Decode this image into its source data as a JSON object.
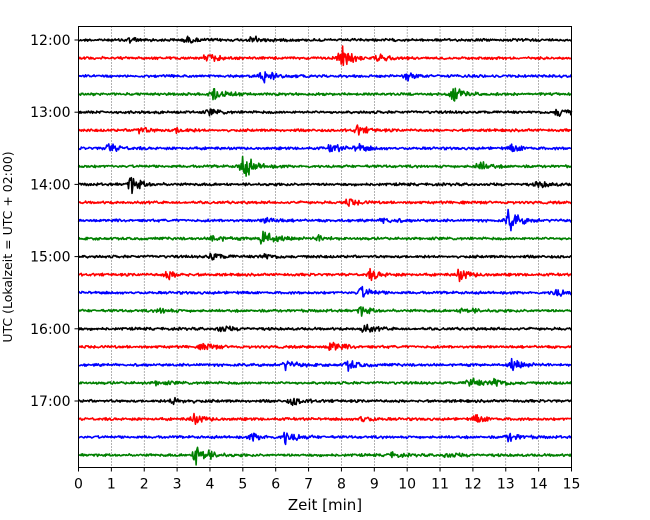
{
  "chart_data": {
    "type": "line",
    "title": "",
    "xlabel": "Zeit  [min]",
    "ylabel": "UTC (Lokalzeit = UTC + 02:00)",
    "xlim": [
      0,
      15
    ],
    "x_ticks": [
      "0",
      "1",
      "2",
      "3",
      "4",
      "5",
      "6",
      "7",
      "8",
      "9",
      "10",
      "11",
      "12",
      "13",
      "14",
      "15"
    ],
    "y_ticks": [
      "12:00",
      "13:00",
      "14:00",
      "15:00",
      "16:00",
      "17:00"
    ],
    "grid": "vertical dotted lines at each minute",
    "colors": [
      "#000000",
      "#ff0000",
      "#0000ff",
      "#008000"
    ],
    "traces": [
      {
        "start": "12:00",
        "color": "#000000",
        "events": [
          [
            1.5,
            0.35
          ],
          [
            3.3,
            0.35
          ],
          [
            5.3,
            0.5
          ]
        ]
      },
      {
        "start": "12:15",
        "color": "#ff0000",
        "events": [
          [
            3.9,
            0.55
          ],
          [
            8.0,
            1.4
          ],
          [
            9.1,
            0.4
          ]
        ]
      },
      {
        "start": "12:30",
        "color": "#0000ff",
        "events": [
          [
            5.6,
            0.9
          ],
          [
            10.0,
            0.45
          ]
        ]
      },
      {
        "start": "12:45",
        "color": "#008000",
        "events": [
          [
            4.1,
            0.9
          ],
          [
            11.4,
            0.85
          ]
        ]
      },
      {
        "start": "13:00",
        "color": "#000000",
        "events": [
          [
            4.0,
            0.35
          ],
          [
            14.6,
            0.6
          ]
        ]
      },
      {
        "start": "13:15",
        "color": "#ff0000",
        "events": [
          [
            1.8,
            0.5
          ],
          [
            3.0,
            0.35
          ],
          [
            8.5,
            0.55
          ]
        ]
      },
      {
        "start": "13:30",
        "color": "#0000ff",
        "events": [
          [
            0.9,
            0.6
          ],
          [
            7.7,
            0.55
          ],
          [
            8.5,
            0.55
          ],
          [
            13.2,
            0.5
          ]
        ]
      },
      {
        "start": "13:45",
        "color": "#008000",
        "events": [
          [
            5.0,
            1.7
          ],
          [
            12.2,
            0.6
          ]
        ]
      },
      {
        "start": "14:00",
        "color": "#000000",
        "events": [
          [
            1.6,
            1.1
          ],
          [
            14.0,
            0.45
          ]
        ]
      },
      {
        "start": "14:15",
        "color": "#ff0000",
        "events": [
          [
            8.2,
            0.45
          ]
        ]
      },
      {
        "start": "14:30",
        "color": "#0000ff",
        "events": [
          [
            5.7,
            0.45
          ],
          [
            9.3,
            0.45
          ],
          [
            13.1,
            1.4
          ]
        ]
      },
      {
        "start": "14:45",
        "color": "#008000",
        "events": [
          [
            4.1,
            0.45
          ],
          [
            5.6,
            1.3
          ],
          [
            7.3,
            0.35
          ]
        ]
      },
      {
        "start": "15:00",
        "color": "#000000",
        "events": [
          [
            4.0,
            0.6
          ],
          [
            5.6,
            0.4
          ]
        ]
      },
      {
        "start": "15:15",
        "color": "#ff0000",
        "events": [
          [
            2.7,
            0.55
          ],
          [
            8.9,
            0.6
          ],
          [
            11.6,
            0.75
          ]
        ]
      },
      {
        "start": "15:30",
        "color": "#0000ff",
        "events": [
          [
            8.6,
            0.75
          ],
          [
            14.5,
            0.55
          ]
        ]
      },
      {
        "start": "15:45",
        "color": "#008000",
        "events": [
          [
            2.5,
            0.35
          ],
          [
            8.6,
            0.55
          ],
          [
            11.7,
            0.45
          ]
        ]
      },
      {
        "start": "16:00",
        "color": "#000000",
        "events": [
          [
            4.3,
            0.45
          ],
          [
            8.7,
            0.55
          ]
        ]
      },
      {
        "start": "16:15",
        "color": "#ff0000",
        "events": [
          [
            3.8,
            0.45
          ],
          [
            7.7,
            0.7
          ]
        ]
      },
      {
        "start": "16:30",
        "color": "#0000ff",
        "events": [
          [
            6.3,
            0.6
          ],
          [
            8.2,
            0.65
          ],
          [
            13.2,
            0.65
          ]
        ]
      },
      {
        "start": "16:45",
        "color": "#008000",
        "events": [
          [
            2.4,
            0.3
          ],
          [
            11.9,
            0.7
          ],
          [
            12.6,
            0.65
          ]
        ]
      },
      {
        "start": "17:00",
        "color": "#000000",
        "events": [
          [
            2.9,
            0.55
          ],
          [
            6.5,
            0.5
          ]
        ]
      },
      {
        "start": "17:15",
        "color": "#ff0000",
        "events": [
          [
            3.5,
            0.65
          ],
          [
            8.6,
            0.45
          ],
          [
            12.1,
            0.55
          ]
        ]
      },
      {
        "start": "17:30",
        "color": "#0000ff",
        "events": [
          [
            5.3,
            0.5
          ],
          [
            6.3,
            0.85
          ],
          [
            13.1,
            0.55
          ]
        ]
      },
      {
        "start": "17:45",
        "color": "#008000",
        "events": [
          [
            3.6,
            1.7
          ],
          [
            9.5,
            0.3
          ],
          [
            11.2,
            0.35
          ]
        ]
      }
    ]
  }
}
